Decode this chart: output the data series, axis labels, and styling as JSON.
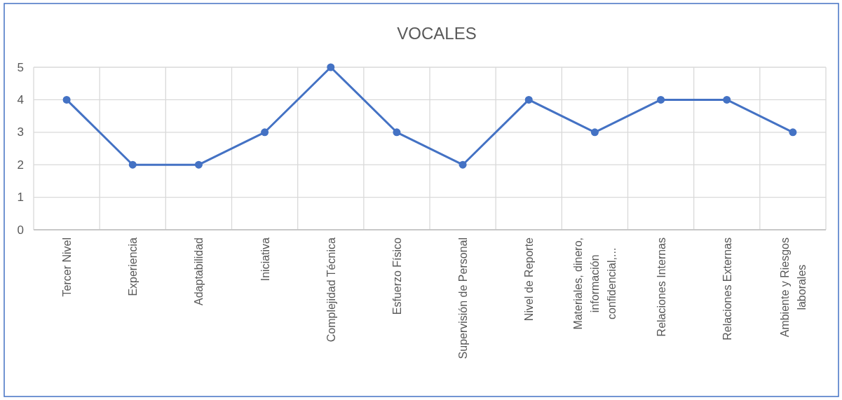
{
  "chart_data": {
    "type": "line",
    "title": "VOCALES",
    "categories": [
      "Tercer Nivel",
      "Experiencia",
      "Adaptabilidad",
      "Iniciativa",
      "Complejidad Técnica",
      "Esfuerzo Físico",
      "Supervisión de Personal",
      "Nivel de Reporte",
      "Materiales, dinero, información confidencial,...",
      "Relaciones Internas",
      "Relaciones Externas",
      "Ambiente y Riesgos laborales"
    ],
    "series": [
      {
        "color": "#4472c4",
        "values": [
          4,
          2,
          2,
          3,
          5,
          3,
          2,
          4,
          3,
          4,
          4,
          3
        ]
      }
    ],
    "ylim": [
      0,
      5
    ],
    "yticks": [
      0,
      1,
      2,
      3,
      4,
      5
    ],
    "grid": true,
    "marker": "circle",
    "line_style": "solid"
  }
}
